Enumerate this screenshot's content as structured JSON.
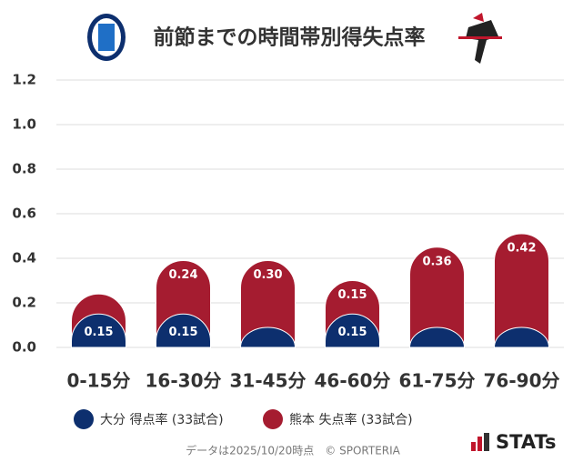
{
  "chart_data": {
    "type": "stacked_bar",
    "title": "前節までの時間帯別得失点率",
    "categories": [
      "0-15分",
      "16-30分",
      "31-45分",
      "46-60分",
      "61-75分",
      "76-90分"
    ],
    "series": [
      {
        "name": "大分 得点率 (33試合)",
        "color": "#0d2f6e",
        "values": [
          0.15,
          0.15,
          0.09,
          0.15,
          0.09,
          0.09
        ],
        "value_labels": [
          "0.15",
          "0.15",
          null,
          "0.15",
          null,
          null
        ]
      },
      {
        "name": "熊本 失点率 (33試合)",
        "color": "#a51c30",
        "values": [
          0.09,
          0.24,
          0.3,
          0.15,
          0.36,
          0.42
        ],
        "value_labels": [
          null,
          "0.24",
          "0.30",
          "0.15",
          "0.36",
          "0.42"
        ]
      }
    ],
    "ylim": [
      0,
      1.2
    ],
    "yticks": [
      {
        "value": 0,
        "label": "0.0"
      },
      0.2,
      0.4,
      0.6,
      0.8,
      {
        "value": 1,
        "label": "1.0"
      },
      1.2
    ],
    "grid": true,
    "legend": "bottom",
    "footnote": "データは2025/10/20時点　© SPORTERIA",
    "brand": "STATs"
  }
}
